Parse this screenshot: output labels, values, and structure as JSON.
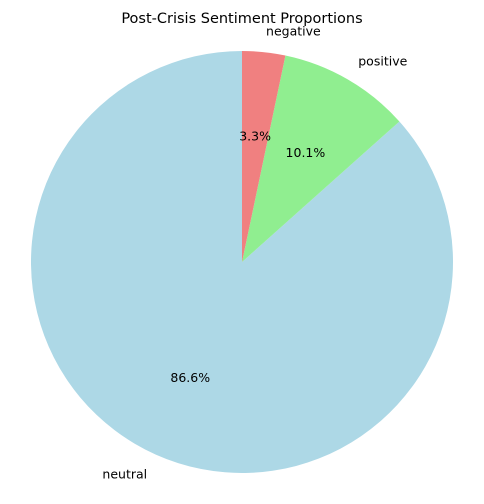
{
  "chart_data": {
    "type": "pie",
    "title": "Post-Crisis Sentiment Proportions",
    "start_angle_deg": 90,
    "direction": "counterclockwise",
    "slices": [
      {
        "label": "neutral",
        "value": 86.6,
        "pct_label": "86.6%",
        "color": "#add8e6"
      },
      {
        "label": "positive",
        "value": 10.1,
        "pct_label": "10.1%",
        "color": "#90ee90"
      },
      {
        "label": "negative",
        "value": 3.3,
        "pct_label": "3.3%",
        "color": "#f08080"
      }
    ],
    "legend": "none"
  }
}
